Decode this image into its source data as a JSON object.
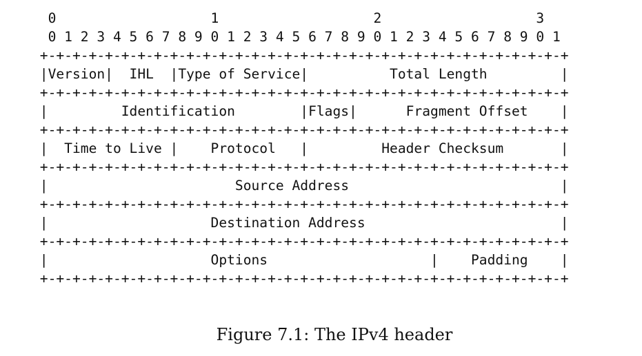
{
  "diagram": {
    "lines": [
      "  0                   1                   2                   3",
      "  0 1 2 3 4 5 6 7 8 9 0 1 2 3 4 5 6 7 8 9 0 1 2 3 4 5 6 7 8 9 0 1",
      " +-+-+-+-+-+-+-+-+-+-+-+-+-+-+-+-+-+-+-+-+-+-+-+-+-+-+-+-+-+-+-+-+",
      " |Version|  IHL  |Type of Service|          Total Length         |",
      " +-+-+-+-+-+-+-+-+-+-+-+-+-+-+-+-+-+-+-+-+-+-+-+-+-+-+-+-+-+-+-+-+",
      " |         Identification        |Flags|      Fragment Offset    |",
      " +-+-+-+-+-+-+-+-+-+-+-+-+-+-+-+-+-+-+-+-+-+-+-+-+-+-+-+-+-+-+-+-+",
      " |  Time to Live |    Protocol   |         Header Checksum       |",
      " +-+-+-+-+-+-+-+-+-+-+-+-+-+-+-+-+-+-+-+-+-+-+-+-+-+-+-+-+-+-+-+-+",
      " |                       Source Address                          |",
      " +-+-+-+-+-+-+-+-+-+-+-+-+-+-+-+-+-+-+-+-+-+-+-+-+-+-+-+-+-+-+-+-+",
      " |                    Destination Address                        |",
      " +-+-+-+-+-+-+-+-+-+-+-+-+-+-+-+-+-+-+-+-+-+-+-+-+-+-+-+-+-+-+-+-+",
      " |                    Options                    |    Padding    |",
      " +-+-+-+-+-+-+-+-+-+-+-+-+-+-+-+-+-+-+-+-+-+-+-+-+-+-+-+-+-+-+-+-+"
    ]
  },
  "caption": "Figure 7.1: The IPv4 header"
}
